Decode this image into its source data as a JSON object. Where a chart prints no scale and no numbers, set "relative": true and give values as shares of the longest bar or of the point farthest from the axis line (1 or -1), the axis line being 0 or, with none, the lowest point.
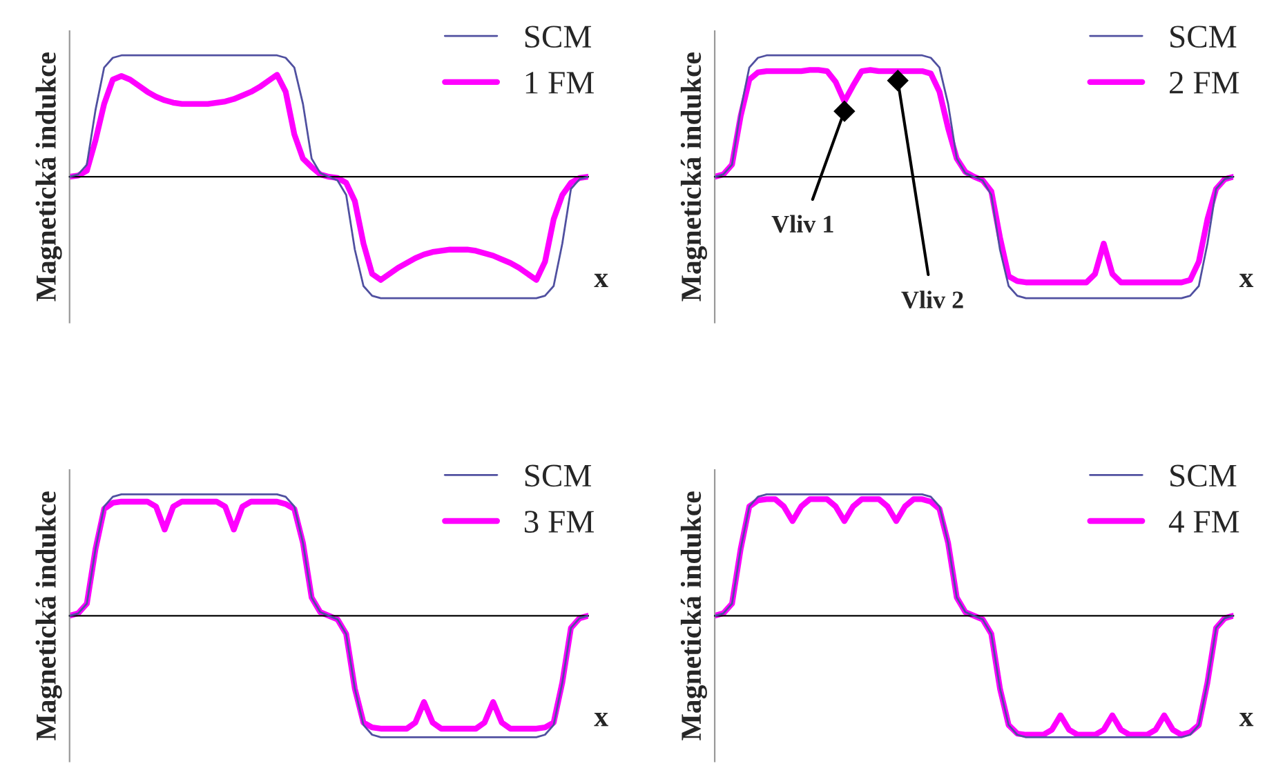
{
  "chart_data": [
    {
      "type": "line",
      "relative": true,
      "ylabel": "Magnetická indukce",
      "xlabel": "x",
      "legend": "top right",
      "categories": [
        null,
        null,
        null,
        null,
        null,
        null,
        null,
        null,
        null,
        null,
        null,
        null,
        null,
        null,
        null,
        null,
        null,
        null,
        null,
        null,
        null,
        null,
        null,
        null,
        null,
        null,
        null,
        null,
        null,
        null,
        null,
        null,
        null,
        null,
        null,
        null,
        null,
        null,
        null,
        null,
        null,
        null,
        null,
        null,
        null,
        null,
        null,
        null,
        null,
        null,
        null,
        null,
        null,
        null,
        null,
        null,
        null,
        null,
        null,
        null,
        null
      ],
      "series": [
        {
          "name": "SCM",
          "color": "#5050a0",
          "values": [
            0,
            0.02,
            0.1,
            0.55,
            0.9,
            0.98,
            1,
            1,
            1,
            1,
            1,
            1,
            1,
            1,
            1,
            1,
            1,
            1,
            1,
            1,
            1,
            1,
            1,
            1,
            1,
            0.98,
            0.9,
            0.6,
            0.15,
            0.03,
            0,
            -0.03,
            -0.15,
            -0.6,
            -0.9,
            -0.98,
            -1,
            -1,
            -1,
            -1,
            -1,
            -1,
            -1,
            -1,
            -1,
            -1,
            -1,
            -1,
            -1,
            -1,
            -1,
            -1,
            -1,
            -1,
            -1,
            -0.98,
            -0.9,
            -0.55,
            -0.1,
            -0.02,
            0
          ]
        },
        {
          "name": "1 FM",
          "color": "#ff00ff",
          "values": [
            0,
            0.01,
            0.05,
            0.3,
            0.6,
            0.8,
            0.83,
            0.8,
            0.75,
            0.7,
            0.66,
            0.63,
            0.61,
            0.6,
            0.6,
            0.6,
            0.6,
            0.61,
            0.62,
            0.64,
            0.67,
            0.7,
            0.74,
            0.79,
            0.84,
            0.7,
            0.35,
            0.15,
            0.08,
            0.02,
            0,
            -0.01,
            -0.05,
            -0.2,
            -0.55,
            -0.8,
            -0.85,
            -0.8,
            -0.75,
            -0.71,
            -0.67,
            -0.64,
            -0.62,
            -0.61,
            -0.6,
            -0.6,
            -0.6,
            -0.61,
            -0.63,
            -0.65,
            -0.68,
            -0.71,
            -0.75,
            -0.8,
            -0.85,
            -0.7,
            -0.35,
            -0.15,
            -0.05,
            -0.01,
            0
          ]
        }
      ]
    },
    {
      "type": "line",
      "relative": true,
      "ylabel": "Magnetická indukce",
      "xlabel": "x",
      "legend": "top right",
      "categories": [
        null,
        null,
        null,
        null,
        null,
        null,
        null,
        null,
        null,
        null,
        null,
        null,
        null,
        null,
        null,
        null,
        null,
        null,
        null,
        null,
        null,
        null,
        null,
        null,
        null,
        null,
        null,
        null,
        null,
        null,
        null,
        null,
        null,
        null,
        null,
        null,
        null,
        null,
        null,
        null,
        null,
        null,
        null,
        null,
        null,
        null,
        null,
        null,
        null,
        null,
        null,
        null,
        null,
        null,
        null,
        null,
        null,
        null,
        null,
        null,
        null
      ],
      "annotations": [
        "Vliv 1",
        "Vliv 2"
      ],
      "series": [
        {
          "name": "SCM",
          "color": "#5050a0",
          "values": [
            0,
            0.02,
            0.1,
            0.55,
            0.9,
            0.98,
            1,
            1,
            1,
            1,
            1,
            1,
            1,
            1,
            1,
            1,
            1,
            1,
            1,
            1,
            1,
            1,
            1,
            1,
            1,
            0.98,
            0.9,
            0.6,
            0.15,
            0.03,
            0,
            -0.03,
            -0.15,
            -0.6,
            -0.9,
            -0.98,
            -1,
            -1,
            -1,
            -1,
            -1,
            -1,
            -1,
            -1,
            -1,
            -1,
            -1,
            -1,
            -1,
            -1,
            -1,
            -1,
            -1,
            -1,
            -1,
            -0.98,
            -0.9,
            -0.55,
            -0.1,
            -0.02,
            0
          ]
        },
        {
          "name": "2 FM",
          "color": "#ff00ff",
          "values": [
            0,
            0.02,
            0.1,
            0.5,
            0.8,
            0.86,
            0.87,
            0.87,
            0.87,
            0.87,
            0.87,
            0.88,
            0.88,
            0.87,
            0.78,
            0.62,
            0.75,
            0.87,
            0.88,
            0.87,
            0.87,
            0.87,
            0.87,
            0.87,
            0.87,
            0.85,
            0.7,
            0.4,
            0.15,
            0.04,
            0,
            -0.03,
            -0.12,
            -0.5,
            -0.82,
            -0.86,
            -0.87,
            -0.87,
            -0.87,
            -0.87,
            -0.87,
            -0.87,
            -0.87,
            -0.87,
            -0.8,
            -0.55,
            -0.8,
            -0.87,
            -0.87,
            -0.87,
            -0.87,
            -0.87,
            -0.87,
            -0.87,
            -0.87,
            -0.85,
            -0.7,
            -0.35,
            -0.1,
            -0.02,
            0
          ]
        }
      ]
    },
    {
      "type": "line",
      "relative": true,
      "ylabel": "Magnetická indukce",
      "xlabel": "x",
      "legend": "top right",
      "categories": [
        null,
        null,
        null,
        null,
        null,
        null,
        null,
        null,
        null,
        null,
        null,
        null,
        null,
        null,
        null,
        null,
        null,
        null,
        null,
        null,
        null,
        null,
        null,
        null,
        null,
        null,
        null,
        null,
        null,
        null,
        null,
        null,
        null,
        null,
        null,
        null,
        null,
        null,
        null,
        null,
        null,
        null,
        null,
        null,
        null,
        null,
        null,
        null,
        null,
        null,
        null,
        null,
        null,
        null,
        null,
        null,
        null,
        null,
        null,
        null,
        null
      ],
      "series": [
        {
          "name": "SCM",
          "color": "#5050a0",
          "values": [
            0,
            0.02,
            0.1,
            0.55,
            0.9,
            0.98,
            1,
            1,
            1,
            1,
            1,
            1,
            1,
            1,
            1,
            1,
            1,
            1,
            1,
            1,
            1,
            1,
            1,
            1,
            1,
            0.98,
            0.9,
            0.6,
            0.15,
            0.03,
            0,
            -0.03,
            -0.15,
            -0.6,
            -0.9,
            -0.98,
            -1,
            -1,
            -1,
            -1,
            -1,
            -1,
            -1,
            -1,
            -1,
            -1,
            -1,
            -1,
            -1,
            -1,
            -1,
            -1,
            -1,
            -1,
            -1,
            -0.98,
            -0.9,
            -0.55,
            -0.1,
            -0.02,
            0
          ]
        },
        {
          "name": "3 FM",
          "color": "#ff00ff",
          "values": [
            0,
            0.02,
            0.1,
            0.55,
            0.88,
            0.93,
            0.94,
            0.94,
            0.94,
            0.94,
            0.9,
            0.71,
            0.9,
            0.94,
            0.94,
            0.94,
            0.94,
            0.94,
            0.9,
            0.71,
            0.9,
            0.94,
            0.94,
            0.94,
            0.94,
            0.92,
            0.88,
            0.6,
            0.15,
            0.03,
            0,
            -0.03,
            -0.15,
            -0.6,
            -0.88,
            -0.92,
            -0.93,
            -0.93,
            -0.93,
            -0.93,
            -0.88,
            -0.71,
            -0.88,
            -0.93,
            -0.93,
            -0.93,
            -0.93,
            -0.93,
            -0.88,
            -0.71,
            -0.88,
            -0.93,
            -0.93,
            -0.93,
            -0.93,
            -0.92,
            -0.88,
            -0.55,
            -0.1,
            -0.02,
            0
          ]
        }
      ]
    },
    {
      "type": "line",
      "relative": true,
      "ylabel": "Magnetická indukce",
      "xlabel": "x",
      "legend": "top right",
      "categories": [
        null,
        null,
        null,
        null,
        null,
        null,
        null,
        null,
        null,
        null,
        null,
        null,
        null,
        null,
        null,
        null,
        null,
        null,
        null,
        null,
        null,
        null,
        null,
        null,
        null,
        null,
        null,
        null,
        null,
        null,
        null,
        null,
        null,
        null,
        null,
        null,
        null,
        null,
        null,
        null,
        null,
        null,
        null,
        null,
        null,
        null,
        null,
        null,
        null,
        null,
        null,
        null,
        null,
        null,
        null,
        null,
        null,
        null,
        null,
        null,
        null
      ],
      "series": [
        {
          "name": "SCM",
          "color": "#5050a0",
          "values": [
            0,
            0.02,
            0.1,
            0.55,
            0.9,
            0.98,
            1,
            1,
            1,
            1,
            1,
            1,
            1,
            1,
            1,
            1,
            1,
            1,
            1,
            1,
            1,
            1,
            1,
            1,
            1,
            0.98,
            0.9,
            0.6,
            0.15,
            0.03,
            0,
            -0.03,
            -0.15,
            -0.6,
            -0.9,
            -0.98,
            -1,
            -1,
            -1,
            -1,
            -1,
            -1,
            -1,
            -1,
            -1,
            -1,
            -1,
            -1,
            -1,
            -1,
            -1,
            -1,
            -1,
            -1,
            -1,
            -0.98,
            -0.9,
            -0.55,
            -0.1,
            -0.02,
            0
          ]
        },
        {
          "name": "4 FM",
          "color": "#ff00ff",
          "values": [
            0,
            0.02,
            0.1,
            0.55,
            0.9,
            0.95,
            0.96,
            0.96,
            0.9,
            0.78,
            0.9,
            0.96,
            0.96,
            0.96,
            0.9,
            0.78,
            0.9,
            0.96,
            0.96,
            0.96,
            0.9,
            0.78,
            0.9,
            0.96,
            0.96,
            0.94,
            0.88,
            0.6,
            0.15,
            0.03,
            0,
            -0.03,
            -0.15,
            -0.6,
            -0.9,
            -0.97,
            -0.98,
            -0.98,
            -0.98,
            -0.94,
            -0.82,
            -0.94,
            -0.98,
            -0.98,
            -0.98,
            -0.94,
            -0.82,
            -0.94,
            -0.98,
            -0.98,
            -0.98,
            -0.94,
            -0.82,
            -0.94,
            -0.98,
            -0.96,
            -0.9,
            -0.55,
            -0.1,
            -0.02,
            0
          ]
        }
      ]
    }
  ]
}
